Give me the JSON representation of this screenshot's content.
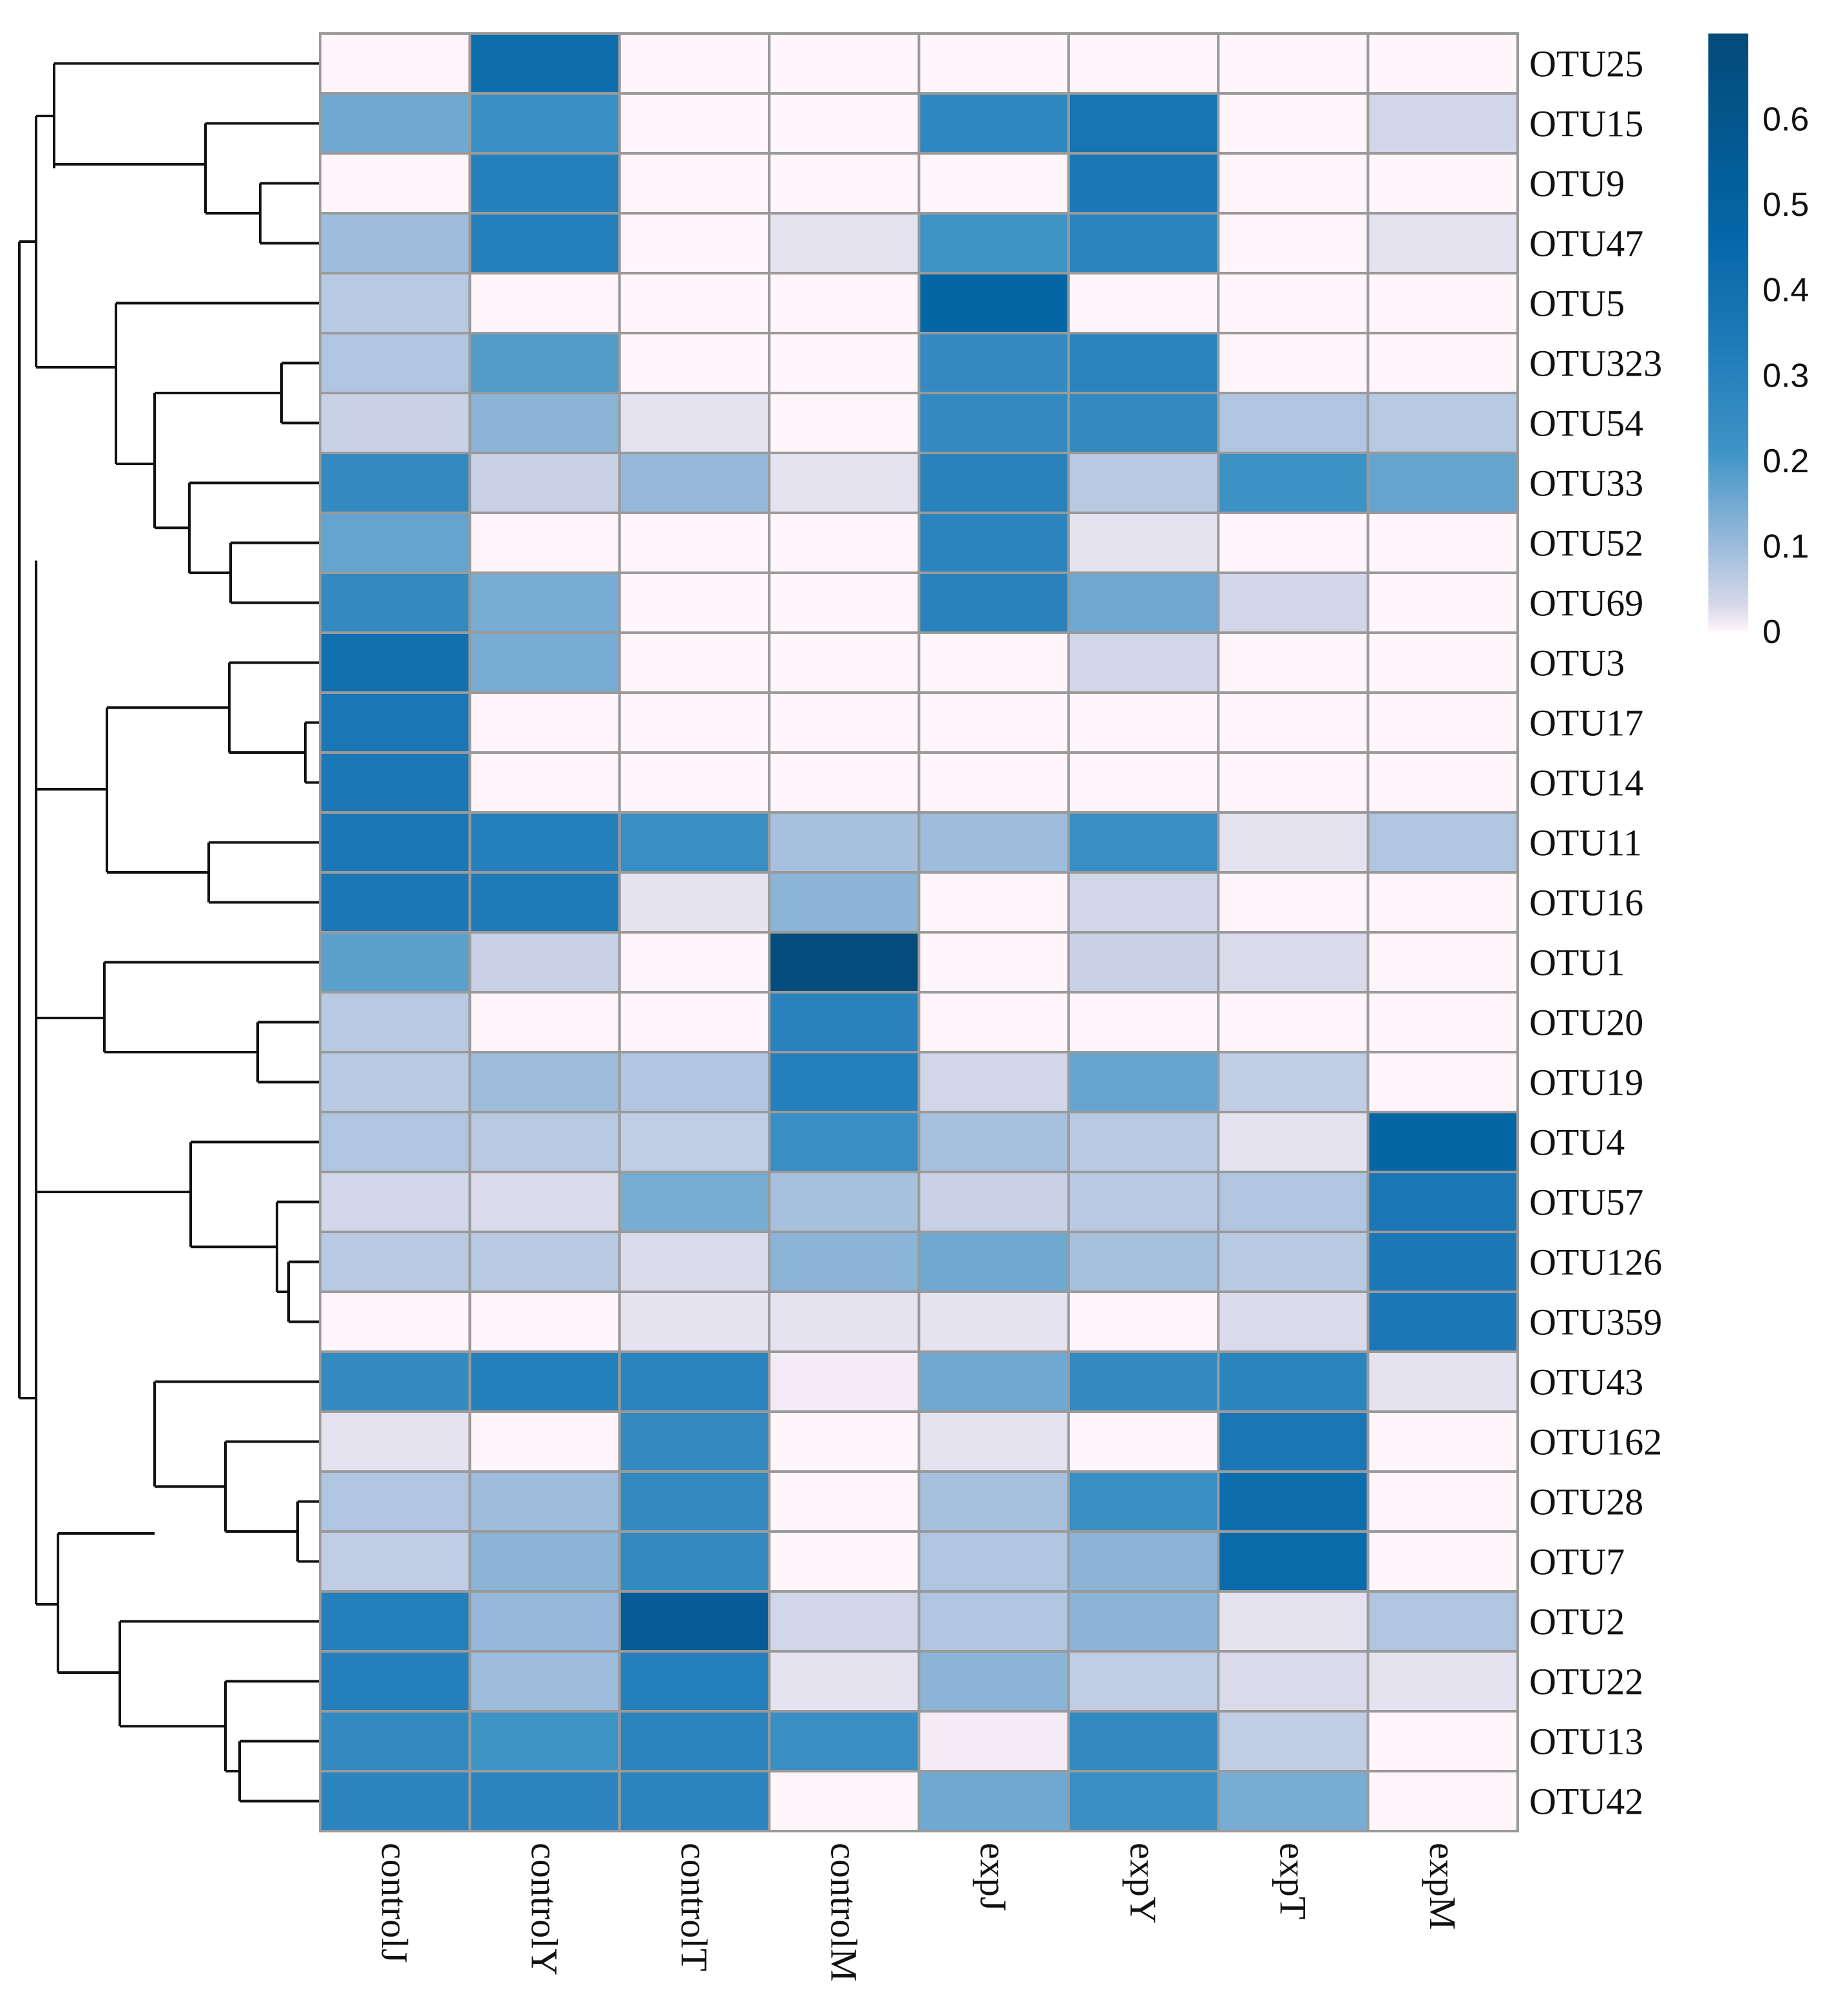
{
  "chart_data": {
    "type": "heatmap",
    "title": "",
    "rows": [
      "OTU25",
      "OTU15",
      "OTU9",
      "OTU47",
      "OTU5",
      "OTU323",
      "OTU54",
      "OTU33",
      "OTU52",
      "OTU69",
      "OTU3",
      "OTU17",
      "OTU14",
      "OTU11",
      "OTU16",
      "OTU1",
      "OTU20",
      "OTU19",
      "OTU4",
      "OTU57",
      "OTU126",
      "OTU359",
      "OTU43",
      "OTU162",
      "OTU28",
      "OTU7",
      "OTU2",
      "OTU22",
      "OTU13",
      "OTU42"
    ],
    "columns": [
      "controlJ",
      "controlY",
      "controlT",
      "controlM",
      "expJ",
      "expY",
      "expT",
      "expM"
    ],
    "values": [
      [
        0.0,
        0.4,
        0.0,
        0.0,
        0.0,
        0.0,
        0.0,
        0.0
      ],
      [
        0.15,
        0.22,
        0.0,
        0.0,
        0.25,
        0.35,
        0.0,
        0.04
      ],
      [
        0.0,
        0.28,
        0.0,
        0.0,
        0.0,
        0.32,
        0.0,
        0.0
      ],
      [
        0.1,
        0.28,
        0.0,
        0.02,
        0.2,
        0.26,
        0.0,
        0.02
      ],
      [
        0.07,
        0.0,
        0.0,
        0.0,
        0.46,
        0.0,
        0.0,
        0.0
      ],
      [
        0.08,
        0.18,
        0.0,
        0.0,
        0.24,
        0.26,
        0.0,
        0.0
      ],
      [
        0.05,
        0.12,
        0.02,
        0.0,
        0.24,
        0.24,
        0.08,
        0.07
      ],
      [
        0.24,
        0.05,
        0.11,
        0.02,
        0.27,
        0.07,
        0.21,
        0.16
      ],
      [
        0.16,
        0.0,
        0.0,
        0.0,
        0.26,
        0.02,
        0.0,
        0.0
      ],
      [
        0.24,
        0.14,
        0.0,
        0.0,
        0.27,
        0.15,
        0.04,
        0.0
      ],
      [
        0.38,
        0.14,
        0.0,
        0.0,
        0.0,
        0.04,
        0.0,
        0.0
      ],
      [
        0.33,
        0.0,
        0.0,
        0.0,
        0.0,
        0.0,
        0.0,
        0.0
      ],
      [
        0.32,
        0.0,
        0.0,
        0.0,
        0.0,
        0.0,
        0.0,
        0.0
      ],
      [
        0.32,
        0.28,
        0.22,
        0.09,
        0.1,
        0.22,
        0.02,
        0.08
      ],
      [
        0.32,
        0.3,
        0.02,
        0.12,
        0.0,
        0.04,
        0.0,
        0.0
      ],
      [
        0.17,
        0.05,
        0.0,
        0.68,
        0.0,
        0.05,
        0.03,
        0.0
      ],
      [
        0.07,
        0.0,
        0.0,
        0.27,
        0.0,
        0.0,
        0.0,
        0.0
      ],
      [
        0.07,
        0.1,
        0.08,
        0.28,
        0.04,
        0.16,
        0.06,
        0.0
      ],
      [
        0.08,
        0.07,
        0.06,
        0.22,
        0.09,
        0.07,
        0.02,
        0.46
      ],
      [
        0.04,
        0.03,
        0.14,
        0.09,
        0.05,
        0.07,
        0.08,
        0.33
      ],
      [
        0.07,
        0.07,
        0.03,
        0.12,
        0.15,
        0.09,
        0.07,
        0.32
      ],
      [
        0.0,
        0.0,
        0.02,
        0.02,
        0.02,
        0.0,
        0.03,
        0.32
      ],
      [
        0.24,
        0.28,
        0.26,
        0.01,
        0.15,
        0.24,
        0.26,
        0.02
      ],
      [
        0.02,
        0.0,
        0.24,
        0.0,
        0.02,
        0.0,
        0.33,
        0.0
      ],
      [
        0.08,
        0.1,
        0.24,
        0.0,
        0.09,
        0.22,
        0.4,
        0.0
      ],
      [
        0.06,
        0.12,
        0.24,
        0.0,
        0.08,
        0.12,
        0.42,
        0.0
      ],
      [
        0.28,
        0.11,
        0.55,
        0.04,
        0.08,
        0.12,
        0.02,
        0.08
      ],
      [
        0.28,
        0.1,
        0.28,
        0.02,
        0.12,
        0.06,
        0.03,
        0.02
      ],
      [
        0.24,
        0.2,
        0.26,
        0.22,
        0.01,
        0.24,
        0.06,
        0.0
      ],
      [
        0.26,
        0.26,
        0.26,
        0.0,
        0.15,
        0.22,
        0.14,
        0.0
      ]
    ],
    "colorbar": {
      "ticks": [
        "0",
        "0.1",
        "0.2",
        "0.3",
        "0.4",
        "0.5",
        "0.6"
      ],
      "range": [
        0,
        0.7
      ],
      "colors": [
        "#fff5fb",
        "#dadaeb",
        "#9ebcdb",
        "#3f94c6",
        "#1f7ab8",
        "#0567a8",
        "#034a78"
      ]
    },
    "dendrogram": "row clustering dendrogram on left",
    "xlabel": "",
    "ylabel": "",
    "legend_position": "top-right"
  }
}
